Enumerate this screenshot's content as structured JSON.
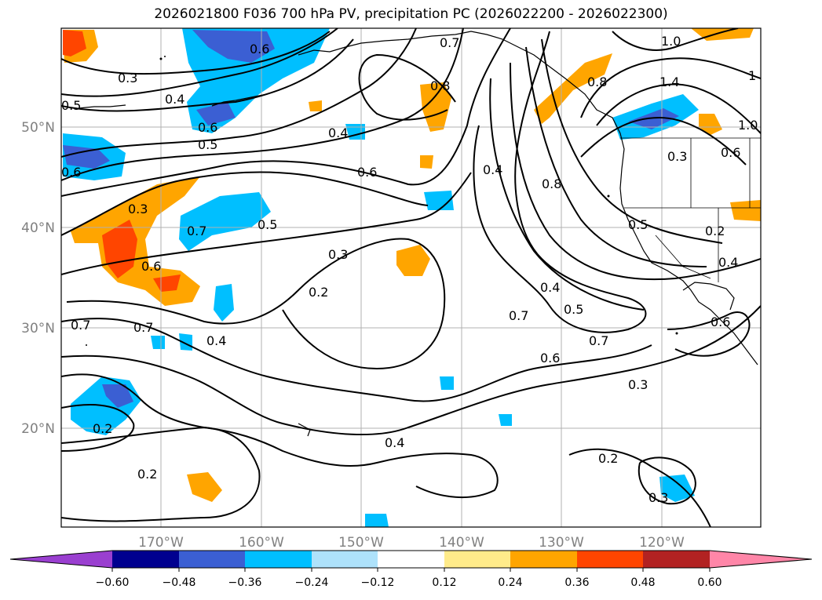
{
  "title": "2026021800 F036 700 hPa PV, precipitation PC (2026022200 - 2026022300)",
  "lat_labels": [
    "50°N",
    "40°N",
    "30°N",
    "20°N"
  ],
  "lon_labels": [
    "170°W",
    "160°W",
    "150°W",
    "140°W",
    "130°W",
    "120°W"
  ],
  "colorbar": {
    "ticks": [
      "−0.60",
      "−0.48",
      "−0.36",
      "−0.24",
      "−0.12",
      "0.12",
      "0.24",
      "0.36",
      "0.48",
      "0.60"
    ],
    "colors": [
      "#9a3fd0",
      "#00008f",
      "#3b5fd3",
      "#00bfff",
      "#aee2fb",
      "#ffffff",
      "#ffeb8a",
      "#ffa500",
      "#ff4500",
      "#b22222",
      "#ff86a8"
    ]
  },
  "contour_labels": [
    "0.3",
    "0.4",
    "0.6",
    "0.5",
    "0.6",
    "0.5",
    "0.4",
    "0.6",
    "0.7",
    "0.8",
    "0.3",
    "0.7",
    "0.5",
    "0.3",
    "0.2",
    "0.7",
    "0.4",
    "0.7",
    "0.2",
    "0.4",
    "0.4",
    "0.8",
    "0.6",
    "0.8",
    "1.0",
    "1.4",
    "1",
    "1.0",
    "0.3",
    "0.6",
    "0.5",
    "0.2",
    "0.4",
    "0.4",
    "0.5",
    "0.7",
    "0.7",
    "0.6",
    "0.3",
    "0.2",
    "0.3",
    "0.6",
    "0.2",
    "0.6"
  ]
}
